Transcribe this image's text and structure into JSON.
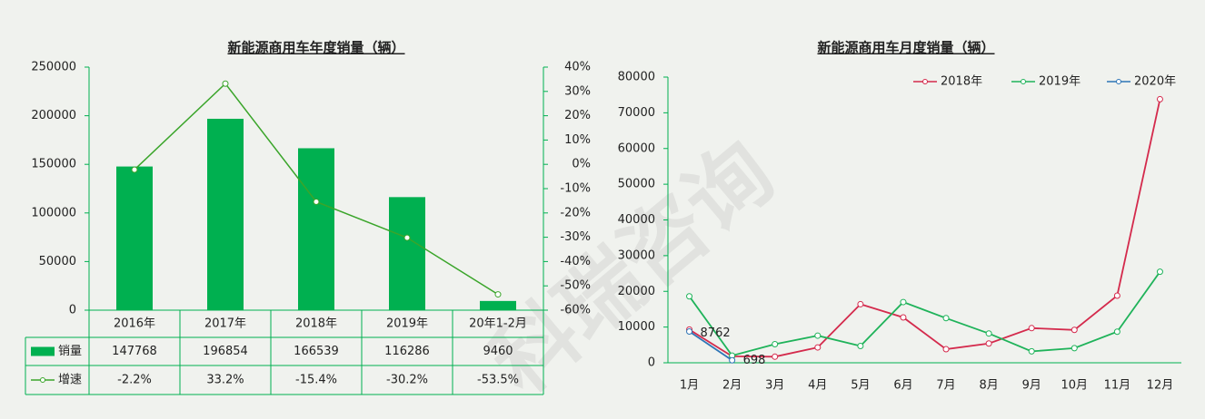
{
  "watermark": "科瑞咨询",
  "chart_data": [
    {
      "type": "bar",
      "title": "新能源商用车年度销量（辆）",
      "categories": [
        "2016年",
        "2017年",
        "2018年",
        "2019年",
        "20年1-2月"
      ],
      "series": [
        {
          "name": "销量",
          "color": "#00b050",
          "values": [
            147768,
            196854,
            166539,
            116286,
            9460
          ]
        },
        {
          "name": "增速",
          "color": "#3aa52a",
          "type": "line",
          "axis": "y2",
          "values": [
            -2.2,
            33.2,
            -15.4,
            -30.2,
            -53.5
          ],
          "value_labels": [
            "-2.2%",
            "33.2%",
            "-15.4%",
            "-30.2%",
            "-53.5%"
          ]
        }
      ],
      "ylim": [
        0,
        250000
      ],
      "yticks": [
        0,
        50000,
        100000,
        150000,
        200000,
        250000
      ],
      "y2lim": [
        -60,
        40
      ],
      "y2ticks": [
        {
          "value": -60,
          "label": "-60%"
        },
        {
          "value": -50,
          "label": "-50%"
        },
        {
          "value": -40,
          "label": "-40%"
        },
        {
          "value": -30,
          "label": "-30%"
        },
        {
          "value": -20,
          "label": "-20%"
        },
        {
          "value": -10,
          "label": "-10%"
        },
        {
          "value": 0,
          "label": "0%"
        },
        {
          "value": 10,
          "label": "10%"
        },
        {
          "value": 20,
          "label": "20%"
        },
        {
          "value": 30,
          "label": "30%"
        },
        {
          "value": 40,
          "label": "40%"
        }
      ],
      "data_table": true
    },
    {
      "type": "line",
      "title": "新能源商用车月度销量（辆）",
      "categories": [
        "1月",
        "2月",
        "3月",
        "4月",
        "5月",
        "6月",
        "7月",
        "8月",
        "9月",
        "10月",
        "11月",
        "12月"
      ],
      "series": [
        {
          "name": "2018年",
          "color": "#d42a4c",
          "values": [
            9300,
            1800,
            1700,
            4300,
            16400,
            12700,
            3800,
            5400,
            9700,
            9200,
            18800,
            73800
          ]
        },
        {
          "name": "2019年",
          "color": "#1fb35a",
          "values": [
            18600,
            2000,
            5200,
            7600,
            4700,
            17000,
            12500,
            8200,
            3200,
            4100,
            8700,
            25500
          ]
        },
        {
          "name": "2020年",
          "color": "#2e75b6",
          "values": [
            8762,
            698,
            null,
            null,
            null,
            null,
            null,
            null,
            null,
            null,
            null,
            null
          ],
          "data_labels": true
        }
      ],
      "ylim": [
        0,
        80000
      ],
      "yticks": [
        0,
        10000,
        20000,
        30000,
        40000,
        50000,
        60000,
        70000,
        80000
      ],
      "legend": "top-right"
    }
  ]
}
